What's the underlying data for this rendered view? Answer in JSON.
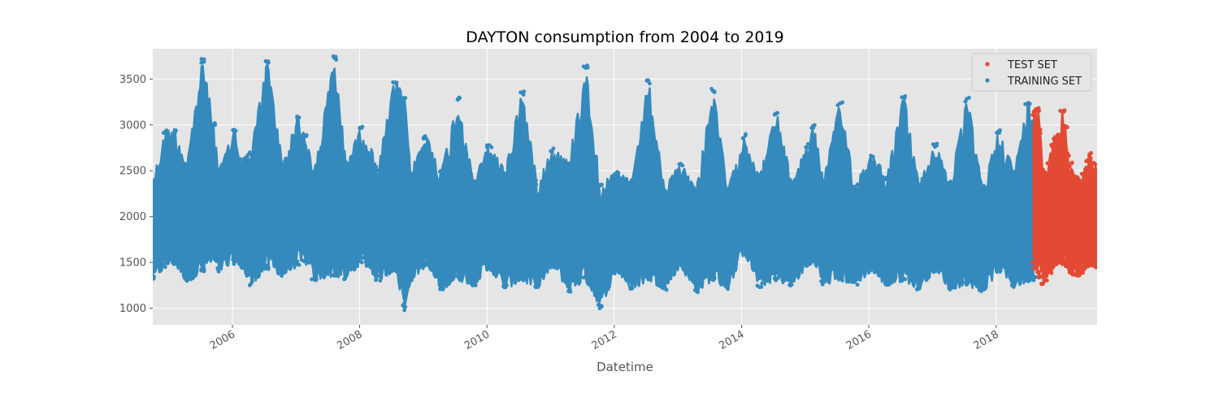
{
  "chart_data": {
    "type": "scatter",
    "title": "DAYTON consumption from 2004 to 2019",
    "xlabel": "Datetime",
    "ylabel": "",
    "xlim": [
      "2004-10-01",
      "2019-08-03"
    ],
    "ylim": [
      820,
      3830
    ],
    "x_ticks": [
      {
        "date": "2006-01-01",
        "label": "2006"
      },
      {
        "date": "2008-01-01",
        "label": "2008"
      },
      {
        "date": "2010-01-01",
        "label": "2010"
      },
      {
        "date": "2012-01-01",
        "label": "2012"
      },
      {
        "date": "2014-01-01",
        "label": "2014"
      },
      {
        "date": "2016-01-01",
        "label": "2016"
      },
      {
        "date": "2018-01-01",
        "label": "2018"
      }
    ],
    "y_ticks": [
      1000,
      1500,
      2000,
      2500,
      3000,
      3500
    ],
    "grid": true,
    "legend_position": "top-right",
    "series": [
      {
        "name": "TEST SET",
        "color": "#E24A33",
        "x": [
          "2018-08-03",
          "2018-08-15",
          "2018-09-01",
          "2018-09-15",
          "2018-10-01",
          "2018-10-15",
          "2018-11-01",
          "2018-11-15",
          "2018-12-01",
          "2018-12-15",
          "2019-01-01",
          "2019-01-15",
          "2019-02-01",
          "2019-02-15",
          "2019-03-01",
          "2019-03-15",
          "2019-04-01",
          "2019-04-15",
          "2019-05-01",
          "2019-05-15",
          "2019-06-01",
          "2019-06-15",
          "2019-07-01",
          "2019-07-15",
          "2019-08-02"
        ],
        "y_low": [
          1450,
          1420,
          1380,
          1300,
          1260,
          1300,
          1380,
          1440,
          1460,
          1470,
          1480,
          1470,
          1460,
          1430,
          1380,
          1360,
          1350,
          1340,
          1360,
          1420,
          1440,
          1450,
          1460,
          1450,
          1440
        ],
        "y_high": [
          3120,
          3180,
          3200,
          2950,
          2520,
          2450,
          2600,
          2800,
          2880,
          2850,
          2900,
          3160,
          3000,
          2700,
          2600,
          2500,
          2450,
          2400,
          2400,
          2500,
          2550,
          2650,
          2700,
          2600,
          2500
        ]
      },
      {
        "name": "TRAINING SET",
        "color": "#348ABD",
        "x": [
          "2004-10-01",
          "2004-12-15",
          "2005-02-01",
          "2005-04-15",
          "2005-07-15",
          "2005-09-15",
          "2005-10-15",
          "2006-01-15",
          "2006-02-15",
          "2006-04-15",
          "2006-07-20",
          "2006-10-15",
          "2007-01-15",
          "2007-02-20",
          "2007-04-15",
          "2007-08-10",
          "2007-10-15",
          "2008-01-15",
          "2008-04-15",
          "2008-07-20",
          "2008-09-15",
          "2008-10-20",
          "2009-01-15",
          "2009-04-15",
          "2009-07-20",
          "2009-10-15",
          "2010-01-15",
          "2010-04-15",
          "2010-07-20",
          "2010-10-15",
          "2011-01-15",
          "2011-04-15",
          "2011-07-20",
          "2011-10-15",
          "2012-01-15",
          "2012-04-15",
          "2012-07-15",
          "2012-10-15",
          "2013-01-15",
          "2013-04-15",
          "2013-07-20",
          "2013-10-15",
          "2014-01-15",
          "2014-04-15",
          "2014-07-20",
          "2014-10-15",
          "2015-01-15",
          "2015-02-20",
          "2015-04-15",
          "2015-07-20",
          "2015-10-15",
          "2016-01-15",
          "2016-04-15",
          "2016-07-20",
          "2016-10-15",
          "2017-01-15",
          "2017-04-15",
          "2017-07-20",
          "2017-10-15",
          "2018-01-15",
          "2018-04-15",
          "2018-07-01",
          "2018-08-02"
        ],
        "y_low": [
          1300,
          1450,
          1480,
          1280,
          1380,
          1500,
          1400,
          1480,
          1450,
          1250,
          1420,
          1350,
          1460,
          1500,
          1300,
          1350,
          1300,
          1500,
          1300,
          1400,
          1000,
          1300,
          1450,
          1200,
          1300,
          1250,
          1420,
          1200,
          1300,
          1200,
          1450,
          1180,
          1300,
          1000,
          1400,
          1200,
          1300,
          1200,
          1450,
          1170,
          1300,
          1200,
          1600,
          1230,
          1300,
          1230,
          1450,
          1500,
          1250,
          1300,
          1250,
          1400,
          1230,
          1300,
          1200,
          1400,
          1200,
          1250,
          1160,
          1400,
          1230,
          1280,
          1300
        ],
        "y_high": [
          2400,
          2950,
          2960,
          2600,
          3730,
          3020,
          2500,
          2970,
          2650,
          2700,
          3710,
          2600,
          3100,
          2900,
          2500,
          3750,
          2600,
          3000,
          2550,
          3500,
          3300,
          2500,
          2900,
          2500,
          3300,
          2400,
          2800,
          2500,
          3380,
          2400,
          2750,
          2600,
          3650,
          2350,
          2500,
          2400,
          3500,
          2300,
          2600,
          2300,
          3400,
          2300,
          2900,
          2450,
          3150,
          2400,
          2800,
          3000,
          2400,
          3250,
          2350,
          2700,
          2450,
          3330,
          2350,
          2800,
          2400,
          3300,
          2300,
          2950,
          2500,
          3250,
          3050
        ]
      }
    ],
    "outliers": [
      {
        "x": "2008-09-14",
        "y": 980
      },
      {
        "x": "2008-09-14",
        "y": 1020
      },
      {
        "x": "2008-09-15",
        "y": 1060
      },
      {
        "x": "2008-09-15",
        "y": 1100
      },
      {
        "x": "2008-09-16",
        "y": 1130
      },
      {
        "x": "2011-10-10",
        "y": 1000
      }
    ]
  }
}
